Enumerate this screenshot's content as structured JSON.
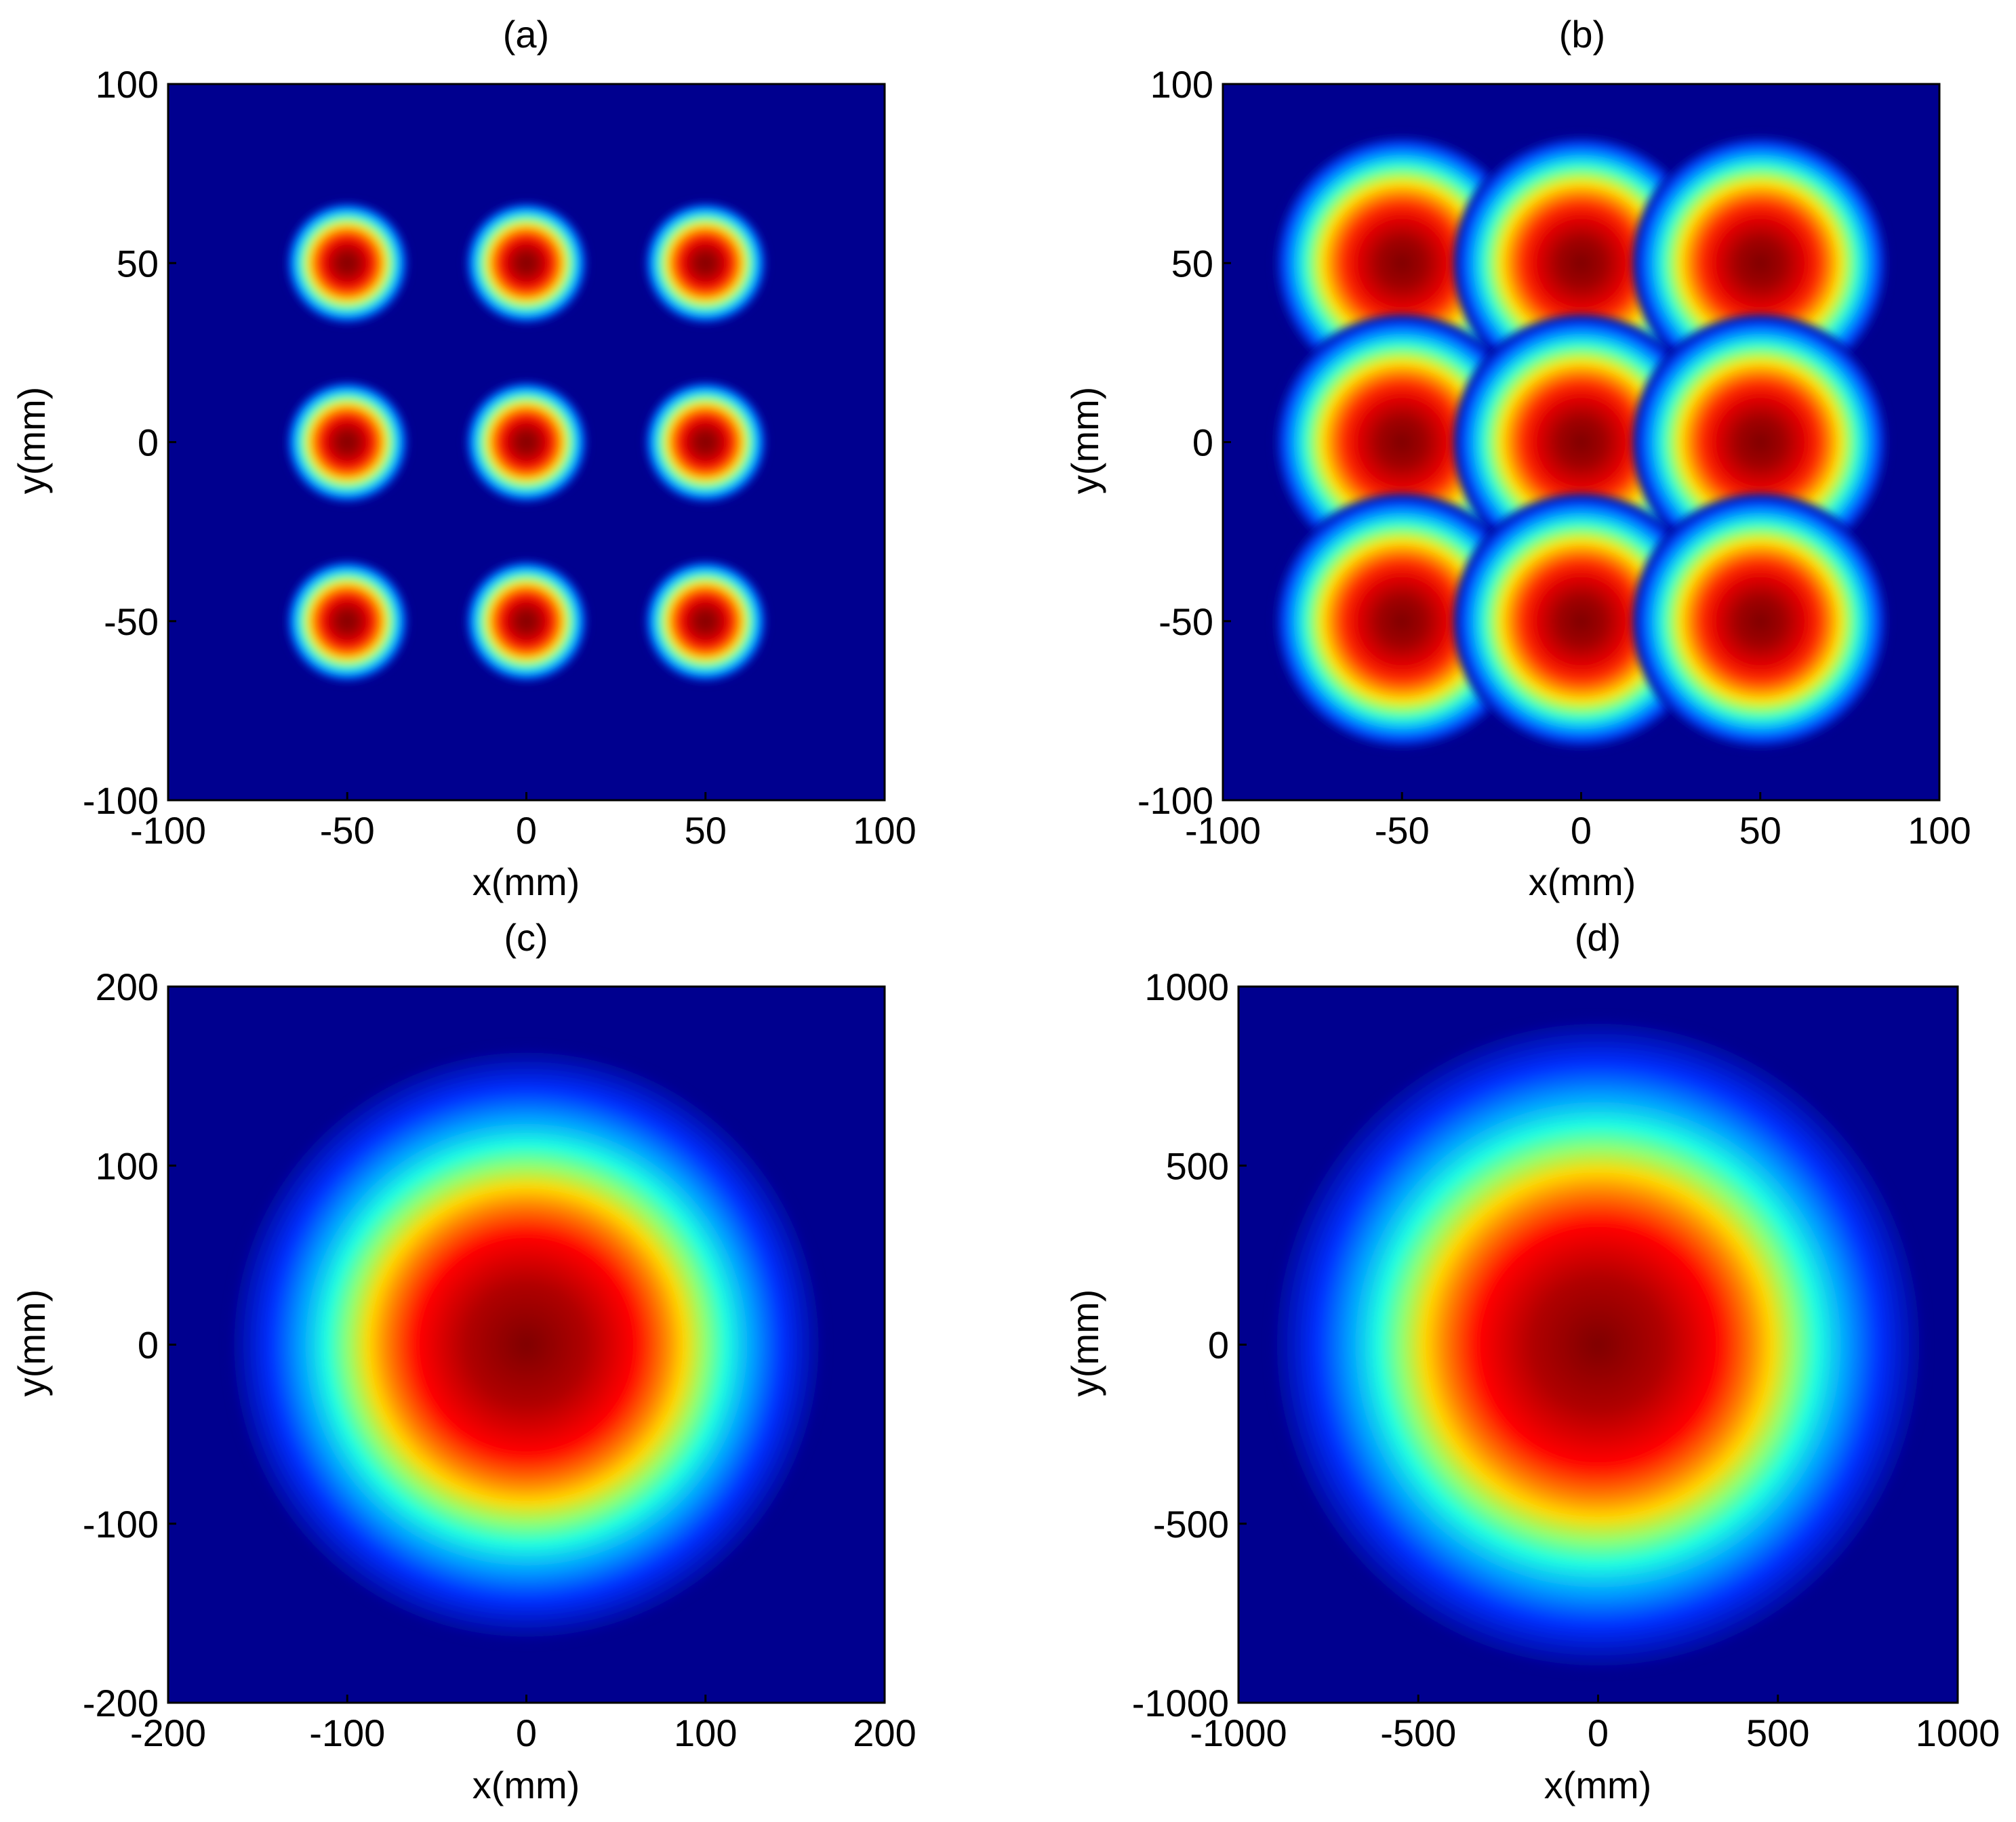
{
  "chart_data": [
    {
      "type": "heatmap",
      "title": "(a)",
      "xlabel": "x(mm)",
      "ylabel": "y(mm)",
      "xlim": [
        -100,
        100
      ],
      "ylim": [
        -100,
        100
      ],
      "xticks": [
        "-100",
        "-50",
        "0",
        "50",
        "100"
      ],
      "yticks": [
        "100",
        "50",
        "0",
        "-50",
        "-100"
      ],
      "colormap": "jet",
      "peaks": [
        {
          "x": -50,
          "y": 50,
          "radius": 11
        },
        {
          "x": 0,
          "y": 50,
          "radius": 11
        },
        {
          "x": 50,
          "y": 50,
          "radius": 11
        },
        {
          "x": -50,
          "y": 0,
          "radius": 11
        },
        {
          "x": 0,
          "y": 0,
          "radius": 11
        },
        {
          "x": 50,
          "y": 0,
          "radius": 11
        },
        {
          "x": -50,
          "y": -50,
          "radius": 11
        },
        {
          "x": 0,
          "y": -50,
          "radius": 11
        },
        {
          "x": 50,
          "y": -50,
          "radius": 11
        }
      ]
    },
    {
      "type": "heatmap",
      "title": "(b)",
      "xlabel": "x(mm)",
      "ylabel": "y(mm)",
      "xlim": [
        -100,
        100
      ],
      "ylim": [
        -100,
        100
      ],
      "xticks": [
        "-100",
        "-50",
        "0",
        "50",
        "100"
      ],
      "yticks": [
        "100",
        "50",
        "0",
        "-50",
        "-100"
      ],
      "colormap": "jet",
      "peaks": [
        {
          "x": -50,
          "y": 50,
          "radius": 23
        },
        {
          "x": 0,
          "y": 50,
          "radius": 23
        },
        {
          "x": 50,
          "y": 50,
          "radius": 23
        },
        {
          "x": -50,
          "y": 0,
          "radius": 23
        },
        {
          "x": 0,
          "y": 0,
          "radius": 23
        },
        {
          "x": 50,
          "y": 0,
          "radius": 23
        },
        {
          "x": -50,
          "y": -50,
          "radius": 23
        },
        {
          "x": 0,
          "y": -50,
          "radius": 23
        },
        {
          "x": 50,
          "y": -50,
          "radius": 23
        }
      ]
    },
    {
      "type": "heatmap",
      "title": "(c)",
      "xlabel": "x(mm)",
      "ylabel": "y(mm)",
      "xlim": [
        -200,
        200
      ],
      "ylim": [
        -200,
        200
      ],
      "xticks": [
        "-200",
        "-100",
        "0",
        "100",
        "200"
      ],
      "yticks": [
        "200",
        "100",
        "0",
        "-100",
        "-200"
      ],
      "colormap": "jet",
      "peaks": [
        {
          "x": 0,
          "y": 0,
          "radius": 95
        }
      ]
    },
    {
      "type": "heatmap",
      "title": "(d)",
      "xlabel": "x(mm)",
      "ylabel": "y(mm)",
      "xlim": [
        -1000,
        1000
      ],
      "ylim": [
        -1000,
        1000
      ],
      "xticks": [
        "-1000",
        "-500",
        "0",
        "500",
        "1000"
      ],
      "yticks": [
        "1000",
        "500",
        "0",
        "-500",
        "-1000"
      ],
      "colormap": "jet",
      "peaks": [
        {
          "x": 0,
          "y": 0,
          "radius": 520
        }
      ]
    }
  ]
}
